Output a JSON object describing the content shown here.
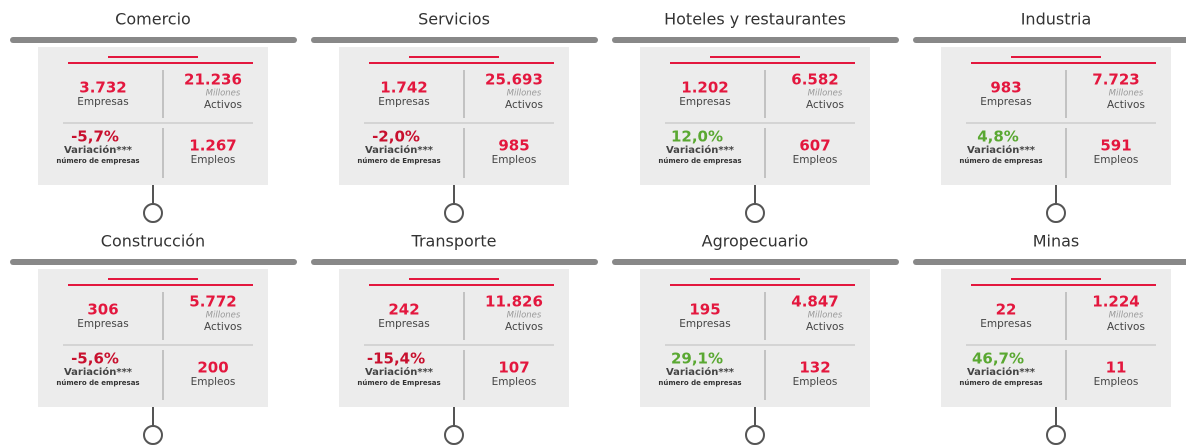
{
  "labels": {
    "empresas": "Empresas",
    "millones": "Millones",
    "activos": "Activos",
    "variacion": "Variación***",
    "empleos": "Empleos"
  },
  "cards": [
    {
      "title": "Comercio",
      "empresas": "3.732",
      "activos": "21.236",
      "variacion": "-5,7%",
      "variation_note": "número de empresas",
      "empleos": "1.267",
      "variation_color": "#c8102e"
    },
    {
      "title": "Servicios",
      "empresas": "1.742",
      "activos": "25.693",
      "variacion": "-2,0%",
      "variation_note": "número de Empresas",
      "empleos": "985",
      "variation_color": "#c8102e"
    },
    {
      "title": "Hoteles y restaurantes",
      "empresas": "1.202",
      "activos": "6.582",
      "variacion": "12,0%",
      "variation_note": "número de empresas",
      "empleos": "607",
      "variation_color": "#5aa832"
    },
    {
      "title": "Industria",
      "empresas": "983",
      "activos": "7.723",
      "variacion": "4,8%",
      "variation_note": "número de empresas",
      "empleos": "591",
      "variation_color": "#5aa832"
    },
    {
      "title": "Construcción",
      "empresas": "306",
      "activos": "5.772",
      "variacion": "-5,6%",
      "variation_note": "número de empresas",
      "empleos": "200",
      "variation_color": "#c8102e"
    },
    {
      "title": "Transporte",
      "empresas": "242",
      "activos": "11.826",
      "variacion": "-15,4%",
      "variation_note": "número de Empresas",
      "empleos": "107",
      "variation_color": "#c8102e"
    },
    {
      "title": "Agropecuario",
      "empresas": "195",
      "activos": "4.847",
      "variacion": "29,1%",
      "variation_note": "número de empresas",
      "empleos": "132",
      "variation_color": "#5aa832"
    },
    {
      "title": "Minas",
      "empresas": "22",
      "activos": "1.224",
      "variacion": "46,7%",
      "variation_note": "número de empresas",
      "empleos": "11",
      "variation_color": "#5aa832"
    }
  ]
}
